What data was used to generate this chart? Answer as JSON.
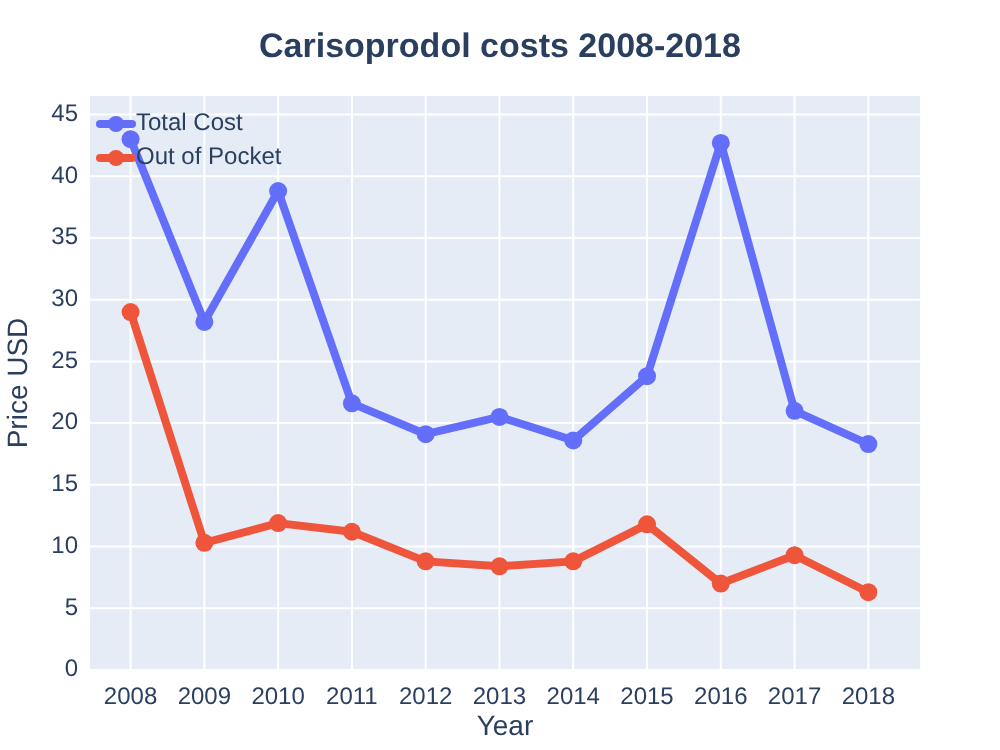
{
  "chart_data": {
    "type": "line",
    "title": "Carisoprodol costs 2008-2018",
    "xlabel": "Year",
    "ylabel": "Price USD",
    "x": [
      2008,
      2009,
      2010,
      2011,
      2012,
      2013,
      2014,
      2015,
      2016,
      2017,
      2018
    ],
    "series": [
      {
        "name": "Total Cost",
        "color": "#636efa",
        "values": [
          43,
          28.2,
          38.8,
          21.6,
          19.1,
          20.5,
          18.6,
          23.8,
          42.7,
          21,
          18.3
        ]
      },
      {
        "name": "Out of Pocket",
        "color": "#ef553b",
        "values": [
          29,
          10.3,
          11.9,
          11.2,
          8.8,
          8.4,
          8.8,
          11.8,
          7,
          9.3,
          6.3
        ]
      }
    ],
    "xlim": [
      2007.45,
      2018.7
    ],
    "xticks": [
      2008,
      2009,
      2010,
      2011,
      2012,
      2013,
      2014,
      2015,
      2016,
      2017,
      2018
    ],
    "ylim": [
      0,
      46.5
    ],
    "yticks": [
      0,
      5,
      10,
      15,
      20,
      25,
      30,
      35,
      40,
      45
    ],
    "grid": true,
    "legend": "top left",
    "marker": "circle",
    "line_style": "solid"
  }
}
